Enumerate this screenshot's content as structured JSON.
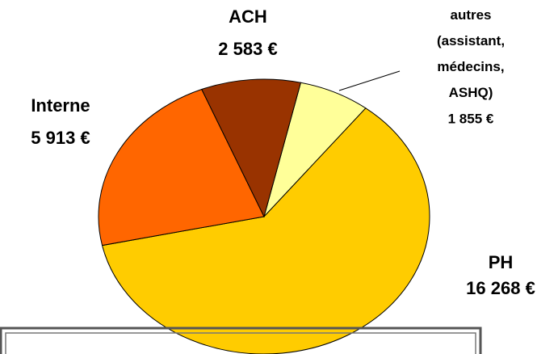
{
  "chart_data": {
    "type": "pie",
    "categories": [
      "autres\n(assistant,\nmédecins,\nASHQ)",
      "PH",
      "Interne",
      "ACH"
    ],
    "values": [
      1855,
      16268,
      5913,
      2583
    ],
    "value_labels": [
      "1 855 €",
      "16 268 €",
      "5 913 €",
      "2 583 €"
    ],
    "colors": [
      "#ffff99",
      "#ffcc00",
      "#ff6600",
      "#993300"
    ]
  }
}
